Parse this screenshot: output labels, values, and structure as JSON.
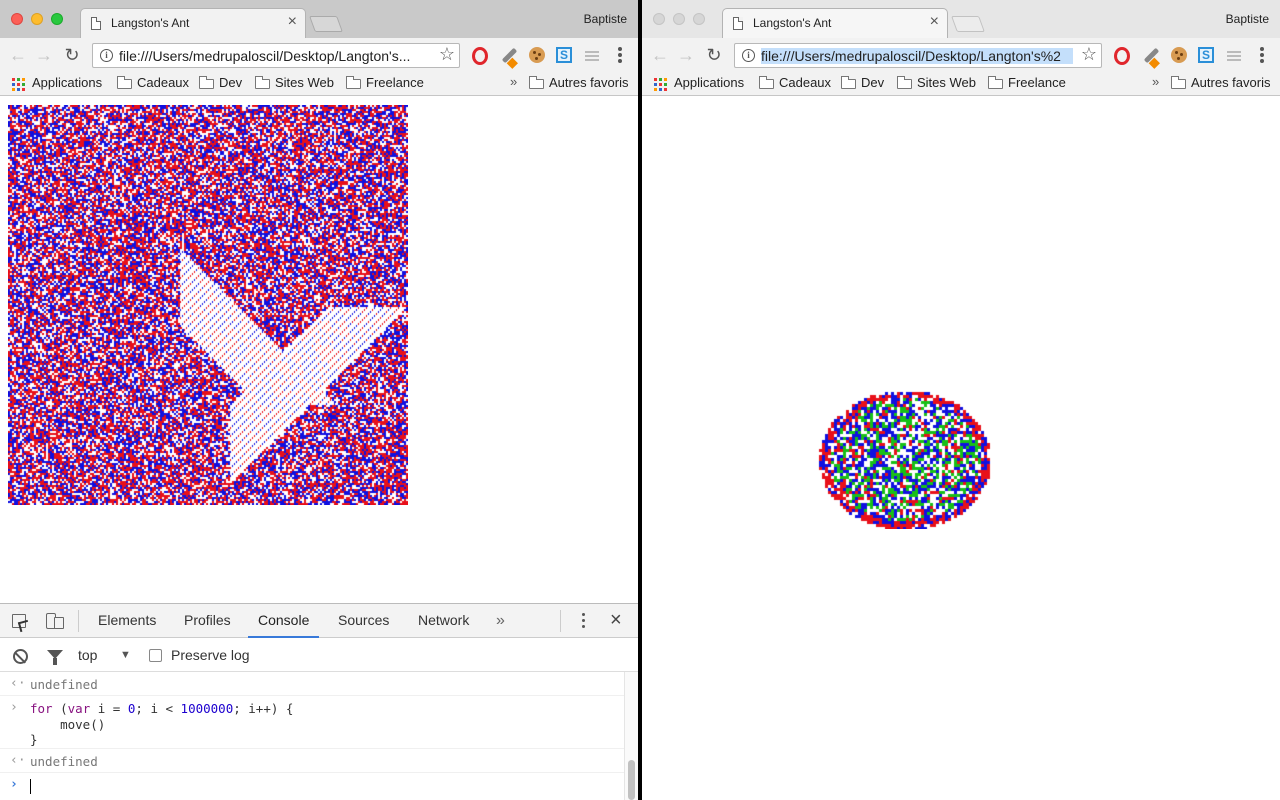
{
  "left_window": {
    "tab_title": "Langston's Ant",
    "profile_name": "Baptiste",
    "url": "file:///Users/medrupaloscil/Desktop/Langton's...",
    "bookmarks": [
      {
        "label": "Applications",
        "type": "apps"
      },
      {
        "label": "Cadeaux",
        "type": "folder"
      },
      {
        "label": "Dev",
        "type": "folder"
      },
      {
        "label": "Sites Web",
        "type": "folder"
      },
      {
        "label": "Freelance",
        "type": "folder"
      }
    ],
    "bookmarks_more": "»",
    "other_bookmarks": "Autres favoris",
    "devtools": {
      "tabs": [
        "Elements",
        "Profiles",
        "Console",
        "Sources",
        "Network"
      ],
      "active_tab": "Console",
      "more_tabs": "»",
      "context": "top",
      "context_arrow": "▼",
      "preserve_log": "Preserve log",
      "console_lines": [
        {
          "kind": "output",
          "gutter": "‹·",
          "text": "undefined"
        },
        {
          "kind": "input",
          "gutter": "›",
          "code": "for (var i = 0; i < 1000000; i++) {\n    move()\n}"
        },
        {
          "kind": "output",
          "gutter": "‹·",
          "text": "undefined"
        },
        {
          "kind": "prompt",
          "gutter": "›",
          "text": ""
        }
      ]
    }
  },
  "right_window": {
    "tab_title": "Langston's Ant",
    "profile_name": "Baptiste",
    "url": "file:///Users/medrupaloscil/Desktop/Langton's%2",
    "bookmarks": [
      {
        "label": "Applications",
        "type": "apps"
      },
      {
        "label": "Cadeaux",
        "type": "folder"
      },
      {
        "label": "Dev",
        "type": "folder"
      },
      {
        "label": "Sites Web",
        "type": "folder"
      },
      {
        "label": "Freelance",
        "type": "folder"
      }
    ],
    "bookmarks_more": "»",
    "other_bookmarks": "Autres favoris"
  },
  "icons": {
    "close_tab": "×",
    "star": "☆",
    "back": "←",
    "forward": "→",
    "reload": "↻",
    "dt_close": "×"
  },
  "colors": {
    "ant_red": "#e8101a",
    "ant_blue": "#1010e0",
    "ant_green": "#18c018",
    "devtools_accent": "#3879d9"
  }
}
